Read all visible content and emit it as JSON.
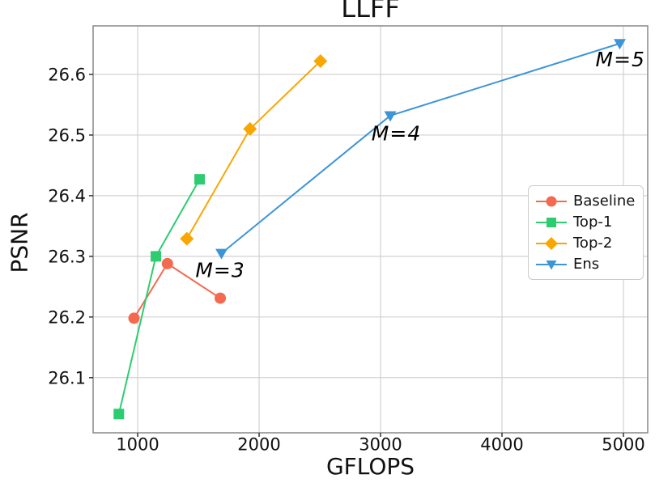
{
  "chart_data": {
    "type": "line",
    "title": "LLFF",
    "xlabel": "GFLOPS",
    "ylabel": "PSNR",
    "xlim": [
      633,
      5200
    ],
    "ylim": [
      26.009,
      26.68
    ],
    "xticks": [
      1000,
      2000,
      3000,
      4000,
      5000
    ],
    "yticks": [
      26.1,
      26.2,
      26.3,
      26.4,
      26.5,
      26.6
    ],
    "grid": true,
    "legend_position": "center-right",
    "series": [
      {
        "name": "Baseline",
        "color": "#f4694f",
        "marker": "circle",
        "points": [
          [
            970,
            26.198
          ],
          [
            1245,
            26.288
          ],
          [
            1680,
            26.231
          ]
        ]
      },
      {
        "name": "Top-1",
        "color": "#2ecc71",
        "marker": "square",
        "points": [
          [
            845,
            26.04
          ],
          [
            1150,
            26.3
          ],
          [
            1510,
            26.427
          ]
        ]
      },
      {
        "name": "Top-2",
        "color": "#f9a602",
        "marker": "diamond",
        "points": [
          [
            1405,
            26.329
          ],
          [
            1925,
            26.51
          ],
          [
            2505,
            26.622
          ]
        ]
      },
      {
        "name": "Ens",
        "color": "#3e95d6",
        "marker": "triangle-down",
        "points": [
          [
            1690,
            26.305
          ],
          [
            3080,
            26.532
          ],
          [
            4970,
            26.651
          ]
        ]
      }
    ],
    "annotations": [
      {
        "text": "M=3",
        "x": 1680,
        "y": 26.278
      },
      {
        "text": "M=4",
        "x": 3130,
        "y": 26.503
      },
      {
        "text": "M=5",
        "x": 4975,
        "y": 26.625
      }
    ]
  }
}
